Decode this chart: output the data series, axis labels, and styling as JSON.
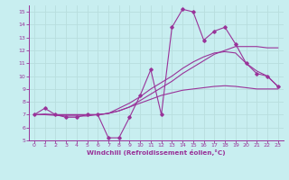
{
  "xlabel": "Windchill (Refroidissement éolien,°C)",
  "bg_color": "#c8eef0",
  "line_color": "#993399",
  "grid_color": "#b8dede",
  "xlim": [
    -0.5,
    23.5
  ],
  "ylim": [
    5,
    15.5
  ],
  "xticks": [
    0,
    1,
    2,
    3,
    4,
    5,
    6,
    7,
    8,
    9,
    10,
    11,
    12,
    13,
    14,
    15,
    16,
    17,
    18,
    19,
    20,
    21,
    22,
    23
  ],
  "yticks": [
    5,
    6,
    7,
    8,
    9,
    10,
    11,
    12,
    13,
    14,
    15
  ],
  "series_data": [
    7.0,
    7.5,
    7.0,
    6.8,
    6.8,
    7.0,
    7.0,
    5.2,
    5.2,
    6.8,
    8.5,
    10.5,
    7.0,
    13.8,
    15.2,
    15.0,
    12.8,
    13.5,
    13.8,
    12.5,
    11.0,
    10.2,
    10.0,
    9.2
  ],
  "line2_data": [
    7.0,
    7.0,
    7.0,
    7.0,
    7.0,
    7.0,
    7.0,
    7.1,
    7.3,
    7.6,
    8.1,
    8.6,
    9.1,
    9.6,
    10.2,
    10.7,
    11.2,
    11.7,
    12.0,
    12.3,
    12.3,
    12.3,
    12.2,
    12.2
  ],
  "line3_data": [
    7.0,
    7.05,
    7.0,
    7.0,
    7.0,
    7.0,
    7.0,
    7.1,
    7.5,
    7.9,
    8.4,
    9.0,
    9.5,
    10.0,
    10.6,
    11.1,
    11.5,
    11.8,
    11.9,
    11.8,
    11.0,
    10.4,
    10.0,
    9.2
  ],
  "line4_data": [
    7.0,
    7.0,
    6.95,
    6.9,
    6.9,
    6.9,
    7.0,
    7.1,
    7.3,
    7.6,
    7.9,
    8.2,
    8.5,
    8.7,
    8.9,
    9.0,
    9.1,
    9.2,
    9.25,
    9.2,
    9.1,
    9.0,
    9.0,
    9.0
  ]
}
